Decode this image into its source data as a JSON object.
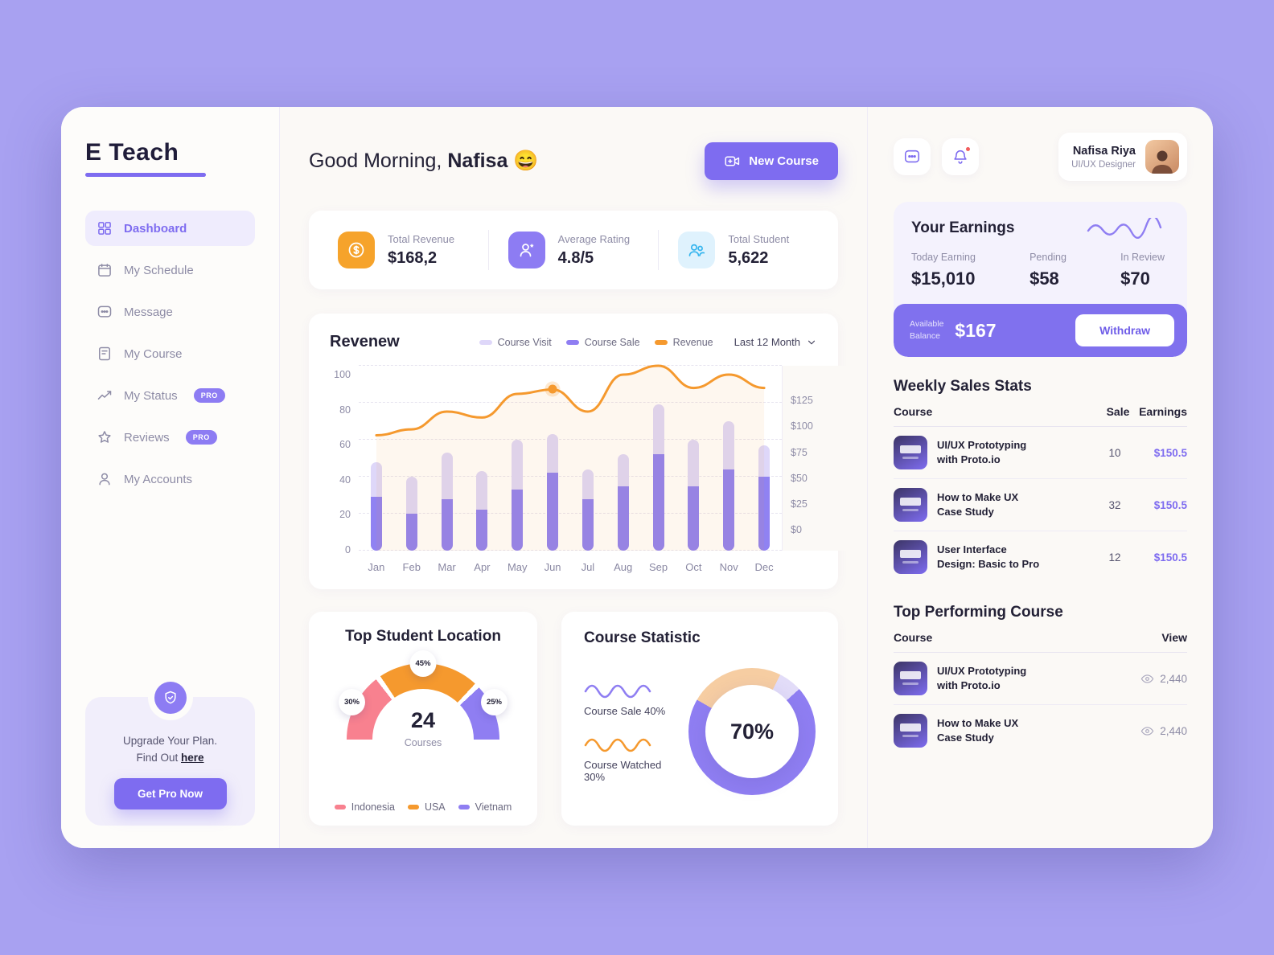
{
  "app": {
    "logo": "E Teach"
  },
  "sidebar": {
    "items": [
      {
        "label": "Dashboard"
      },
      {
        "label": "My Schedule"
      },
      {
        "label": "Message"
      },
      {
        "label": "My Course"
      },
      {
        "label": "My Status",
        "badge": "PRO"
      },
      {
        "label": "Reviews",
        "badge": "PRO"
      },
      {
        "label": "My Accounts"
      }
    ],
    "upgrade": {
      "line1": "Upgrade Your Plan.",
      "line2": "Find Out",
      "link_text": "here",
      "button": "Get Pro Now"
    }
  },
  "header": {
    "greeting": "Good Morning,",
    "name": "Nafisa",
    "emoji": "😄",
    "new_course_button": "New Course"
  },
  "stats": [
    {
      "label": "Total Revenue",
      "value": "$168,2"
    },
    {
      "label": "Average Rating",
      "value": "4.8/5"
    },
    {
      "label": "Total Student",
      "value": "5,622"
    }
  ],
  "revenue_card": {
    "title": "Revenew",
    "legend": [
      "Course Visit",
      "Course Sale",
      "Revenue"
    ],
    "range": "Last 12 Month"
  },
  "chart_data": [
    {
      "type": "bar+line",
      "title": "Revenew",
      "categories": [
        "Jan",
        "Feb",
        "Mar",
        "Apr",
        "May",
        "Jun",
        "Jul",
        "Aug",
        "Sep",
        "Oct",
        "Nov",
        "Dec"
      ],
      "series": [
        {
          "name": "Course Sale",
          "type": "bar",
          "color": "#9082f2",
          "values": [
            29,
            20,
            28,
            22,
            33,
            42,
            28,
            35,
            52,
            35,
            44,
            40
          ]
        },
        {
          "name": "Course Visit",
          "type": "bar",
          "color": "#ded7f9",
          "values": [
            19,
            20,
            25,
            21,
            27,
            21,
            16,
            17,
            27,
            25,
            26,
            17
          ]
        },
        {
          "name": "Revenue",
          "type": "line",
          "color": "#f5992e",
          "axis": "right",
          "values_usd": [
            78,
            82,
            94,
            90,
            106,
            109,
            94,
            119,
            125,
            110,
            119,
            110
          ]
        }
      ],
      "left_axis": {
        "ticks": [
          0,
          20,
          40,
          60,
          80,
          100
        ],
        "max": 100
      },
      "right_axis": {
        "ticks": [
          "$0",
          "$25",
          "$50",
          "$75",
          "$100",
          "$125"
        ],
        "max": 125
      },
      "highlight_index": 5,
      "grid": "dashed-horizontal",
      "legend_position": "top"
    },
    {
      "type": "gauge",
      "title": "Top Student Location",
      "segments": [
        {
          "label": "Indonesia",
          "pct": 30,
          "color": "#f8818f"
        },
        {
          "label": "USA",
          "pct": 45,
          "color": "#f5992e"
        },
        {
          "label": "Vietnam",
          "pct": 25,
          "color": "#8f7ef2"
        }
      ],
      "center_value": "24",
      "center_label": "Courses"
    },
    {
      "type": "donut",
      "title": "Course Statistic",
      "center_value": "70%",
      "segments": [
        {
          "label": "Course Sale",
          "pct": 40
        },
        {
          "label": "Course Watched",
          "pct": 30
        }
      ],
      "colors": {
        "main": "#8f7ef2",
        "secondary": "#f6cda2",
        "tertiary": "#e2dcf8"
      }
    }
  ],
  "location_card": {
    "title": "Top Student Location",
    "value": "24",
    "unit": "Courses",
    "labels": {
      "seg1": "30%",
      "seg2": "45%",
      "seg3": "25%"
    },
    "legend": [
      "Indonesia",
      "USA",
      "Vietnam"
    ]
  },
  "statistic_card": {
    "title": "Course Statistic",
    "donut_value": "70%",
    "items": [
      {
        "label": "Course Sale 40%"
      },
      {
        "label": "Course Watched 30%"
      }
    ]
  },
  "topbar": {
    "profile": {
      "name": "Nafisa Riya",
      "role": "UI/UX Designer"
    }
  },
  "earnings": {
    "title": "Your Earnings",
    "columns": [
      {
        "label": "Today Earning",
        "value": "$15,010"
      },
      {
        "label": "Pending",
        "value": "$58"
      },
      {
        "label": "In Review",
        "value": "$70"
      }
    ],
    "balance_label_1": "Available",
    "balance_label_2": "Balance",
    "balance_value": "$167",
    "withdraw_button": "Withdraw"
  },
  "weekly_sales": {
    "title": "Weekly Sales Stats",
    "headers": {
      "course": "Course",
      "sale": "Sale",
      "earnings": "Earnings"
    },
    "rows": [
      {
        "course_line1": "UI/UX Prototyping",
        "course_line2": "with Proto.io",
        "sale": "10",
        "earnings": "$150.5"
      },
      {
        "course_line1": "How to Make UX",
        "course_line2": "Case Study",
        "sale": "32",
        "earnings": "$150.5"
      },
      {
        "course_line1": "User Interface",
        "course_line2": "Design: Basic to Pro",
        "sale": "12",
        "earnings": "$150.5"
      }
    ]
  },
  "top_courses": {
    "title": "Top Performing Course",
    "headers": {
      "course": "Course",
      "view": "View"
    },
    "rows": [
      {
        "course_line1": "UI/UX Prototyping",
        "course_line2": "with Proto.io",
        "views": "2,440"
      },
      {
        "course_line1": "How to Make UX",
        "course_line2": "Case Study",
        "views": "2,440"
      }
    ]
  },
  "colors": {
    "accent": "#7e6cf0",
    "orange": "#f5992e",
    "pink": "#f8818f",
    "bar_light": "#ded7f9",
    "bar_dark": "#9082f2",
    "blue": "#35b5ee",
    "background": "#a8a1f1"
  }
}
